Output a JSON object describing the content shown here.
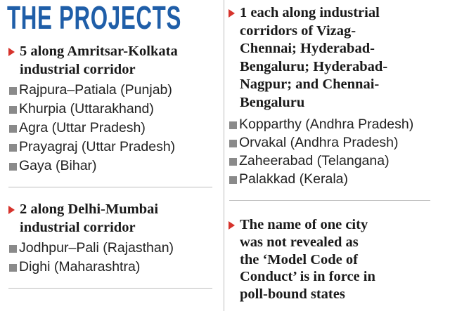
{
  "title": "THE PROJECTS",
  "sections": [
    {
      "heading": [
        "5 along Amritsar-Kolkata",
        "industrial corridor"
      ],
      "items": [
        "Rajpura–Patiala   (Punjab)",
        "Khurpia (Uttarakhand)",
        "Agra (Uttar Pradesh)",
        "Prayagraj (Uttar Pradesh)",
        "Gaya (Bihar)"
      ]
    },
    {
      "heading": [
        "2 along Delhi-Mumbai",
        "industrial corridor"
      ],
      "items": [
        "Jodhpur–Pali (Rajasthan)",
        "Dighi (Maharashtra)"
      ]
    },
    {
      "heading": [
        "1 each along industrial",
        "corridors of Vizag-",
        "Chennai; Hyderabad-",
        "Bengaluru; Hyderabad-",
        "Nagpur; and Chennai-",
        "Bengaluru"
      ],
      "items": [
        "Kopparthy (Andhra Pradesh)",
        "Orvakal (Andhra Pradesh)",
        "Zaheerabad (Telangana)",
        "Palakkad (Kerala)"
      ]
    },
    {
      "heading": [
        "The name of one city",
        "was not revealed as",
        "the ‘Model Code of",
        "Conduct’ is in force in",
        "poll-bound states"
      ],
      "items": []
    }
  ]
}
